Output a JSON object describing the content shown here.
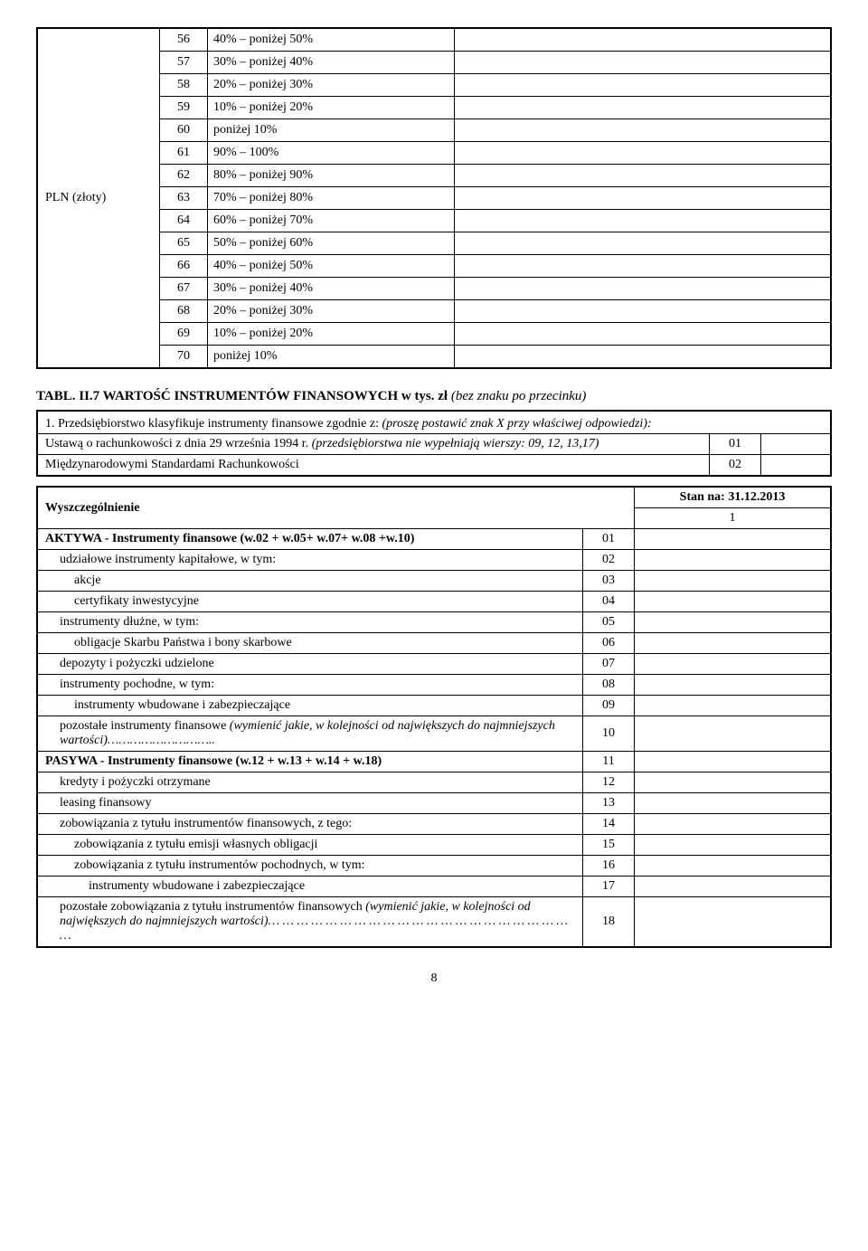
{
  "table1": {
    "label": "PLN (złoty)",
    "rows": [
      {
        "n": "56",
        "d": "40% – poniżej 50%"
      },
      {
        "n": "57",
        "d": "30% – poniżej 40%"
      },
      {
        "n": "58",
        "d": "20% – poniżej 30%"
      },
      {
        "n": "59",
        "d": "10% – poniżej 20%"
      },
      {
        "n": "60",
        "d": "poniżej 10%"
      },
      {
        "n": "61",
        "d": "90% – 100%"
      },
      {
        "n": "62",
        "d": "80% – poniżej 90%"
      },
      {
        "n": "63",
        "d": "70% – poniżej 80%"
      },
      {
        "n": "64",
        "d": "60% – poniżej 70%"
      },
      {
        "n": "65",
        "d": "50% – poniżej 60%"
      },
      {
        "n": "66",
        "d": "40% – poniżej 50%"
      },
      {
        "n": "67",
        "d": "30% – poniżej 40%"
      },
      {
        "n": "68",
        "d": "20% – poniżej 30%"
      },
      {
        "n": "69",
        "d": "10% – poniżej 20%"
      },
      {
        "n": "70",
        "d": "poniżej 10%"
      }
    ]
  },
  "heading": {
    "main": "TABL. II.7 WARTOŚĆ INSTRUMENTÓW FINANSOWYCH  w tys. zł",
    "ital": " (bez znaku po przecinku)"
  },
  "q1": {
    "prefix": "1. Przedsiębiorstwo klasyfikuje instrumenty finansowe zgodnie z: ",
    "ital": "(proszę postawić znak X przy  właściwej odpowiedzi):",
    "rows": [
      {
        "label": "Ustawą o rachunkowości z dnia 29 września 1994 r. ",
        "ital": "(przedsiębiorstwa nie wypełniają wierszy:  09, 12, 13,17)",
        "n": "01"
      },
      {
        "label": "Międzynarodowymi Standardami Rachunkowości",
        "ital": "",
        "n": "02"
      }
    ]
  },
  "t3head": {
    "col1": "Wyszczególnienie",
    "col3": "Stan na: 31.12.2013",
    "sub": "1"
  },
  "t3rows": [
    {
      "d": "AKTYWA - Instrumenty finansowe  (w.02 + w.05+ w.07+ w.08 +w.10)",
      "n": "01",
      "bold": true,
      "ind": 0
    },
    {
      "d": "udziałowe instrumenty kapitałowe,   w tym:",
      "n": "02",
      "ind": 1
    },
    {
      "d": "akcje",
      "n": "03",
      "ind": 2
    },
    {
      "d": "certyfikaty inwestycyjne",
      "n": "04",
      "ind": 2
    },
    {
      "d": "instrumenty dłużne,  w tym:",
      "n": "05",
      "ind": 1
    },
    {
      "d": "obligacje Skarbu Państwa i bony skarbowe",
      "n": "06",
      "ind": 2
    },
    {
      "d": "depozyty i pożyczki udzielone",
      "n": "07",
      "ind": 1
    },
    {
      "d": "instrumenty pochodne, w tym:",
      "n": "08",
      "ind": 1
    },
    {
      "d": "instrumenty wbudowane i zabezpieczające",
      "n": "09",
      "ind": 2
    },
    {
      "d": "pozostałe instrumenty finansowe ",
      "ital": "(wymienić jakie, w kolejności od największych  do najmniejszych wartości)………………………..",
      "n": "10",
      "ind": 1,
      "just": true
    },
    {
      "d": "PASYWA - Instrumenty finansowe (w.12 + w.13 + w.14 + w.18)",
      "n": "11",
      "bold": true,
      "ind": 0
    },
    {
      "d": "kredyty i pożyczki otrzymane",
      "n": "12",
      "ind": 1
    },
    {
      "d": "leasing finansowy",
      "n": "13",
      "ind": 1
    },
    {
      "d": "zobowiązania z tytułu instrumentów finansowych, z tego:",
      "n": "14",
      "ind": 1
    },
    {
      "d": "zobowiązania z tytułu emisji własnych obligacji",
      "n": "15",
      "ind": 2
    },
    {
      "d": "zobowiązania z tytułu instrumentów pochodnych, w tym:",
      "n": "16",
      "ind": 2
    },
    {
      "d": "instrumenty wbudowane i zabezpieczające",
      "n": "17",
      "ind": 3
    },
    {
      "d": "pozostałe zobowiązania z tytułu instrumentów finansowych  ",
      "ital": "(wymienić jakie, w kolejności od największych do najmniejszych wartości)… … … … … … … … … … … … … … … … … … … … … …",
      "n": "18",
      "ind": 1,
      "just": true
    }
  ],
  "page": "8"
}
